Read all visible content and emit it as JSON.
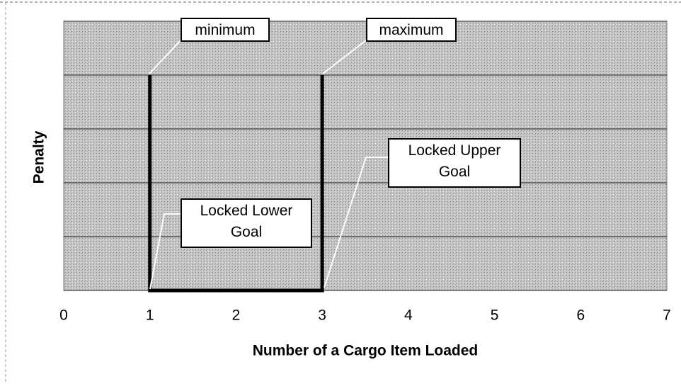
{
  "chart_data": {
    "type": "line",
    "x": [
      1,
      1,
      3,
      3
    ],
    "values": [
      4,
      0,
      0,
      4
    ],
    "color": "#000000",
    "xlabel": "Number of a Cargo Item Loaded",
    "ylabel": "Penalty",
    "xlim": [
      0,
      7
    ],
    "xticks": [
      0,
      1,
      2,
      3,
      4,
      5,
      6,
      7
    ],
    "ylim": [
      0,
      5
    ],
    "yticks": [
      0,
      1,
      2,
      3,
      4,
      5
    ],
    "grid": true,
    "annotations": [
      "minimum",
      "maximum",
      "Locked Upper Goal",
      "Locked Lower Goal"
    ]
  }
}
